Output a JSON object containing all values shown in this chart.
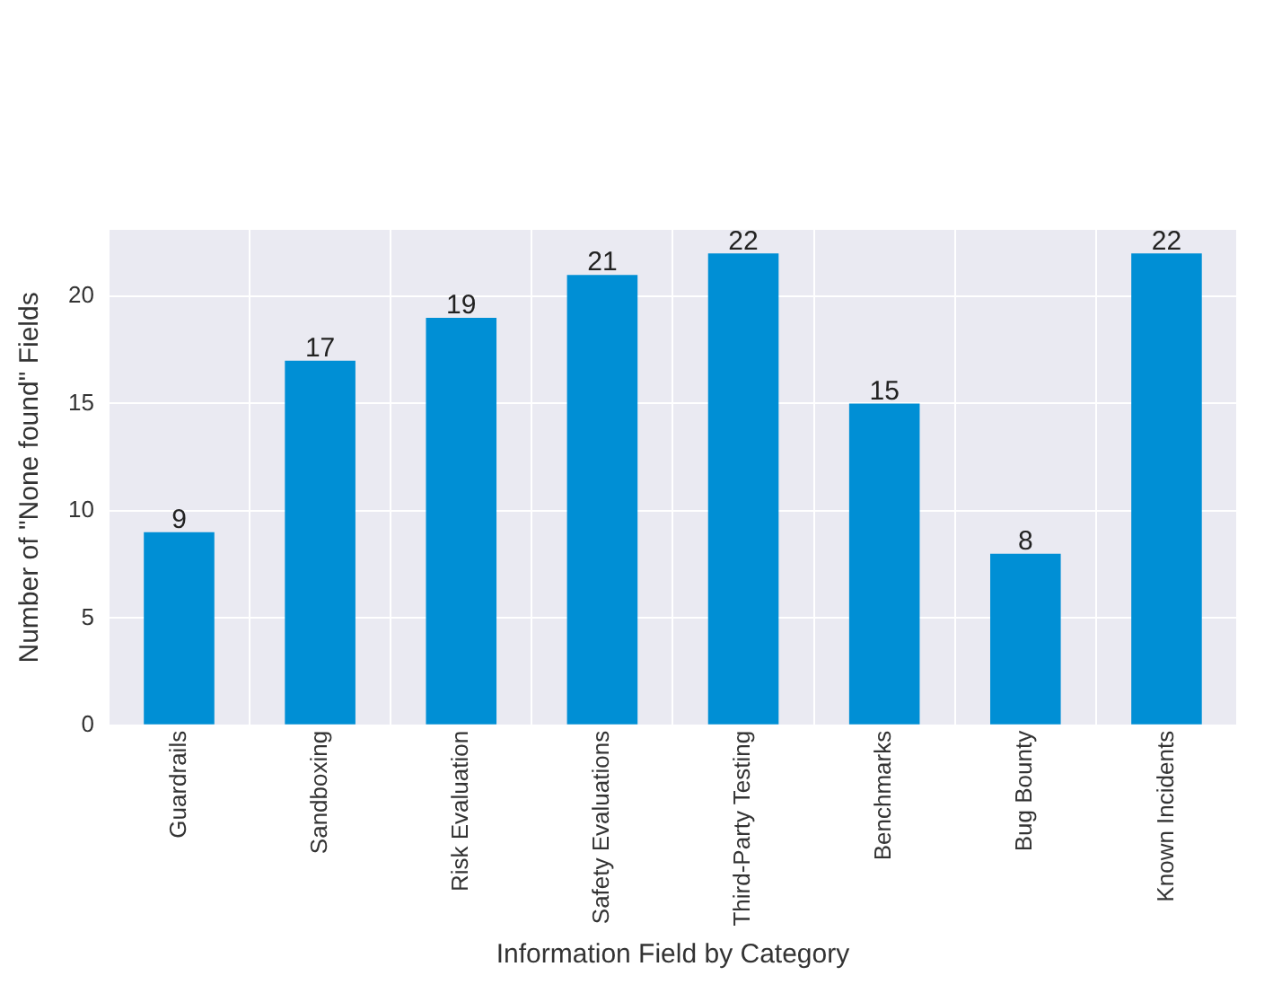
{
  "chart_data": {
    "type": "bar",
    "xlabel": "Information Field by Category",
    "ylabel": "Number of \"None found\" Fields",
    "categories": [
      "Guardrails",
      "Sandboxing",
      "Risk Evaluation",
      "Safety Evaluations",
      "Third-Party Testing",
      "Benchmarks",
      "Bug Bounty",
      "Known Incidents"
    ],
    "values": [
      9,
      17,
      19,
      21,
      22,
      15,
      8,
      22
    ],
    "color": "#008fd5",
    "ylim": [
      0,
      23.1
    ],
    "yticks": [
      0,
      5,
      10,
      15,
      20
    ],
    "grid": true,
    "data_labels": true,
    "legend": false
  }
}
